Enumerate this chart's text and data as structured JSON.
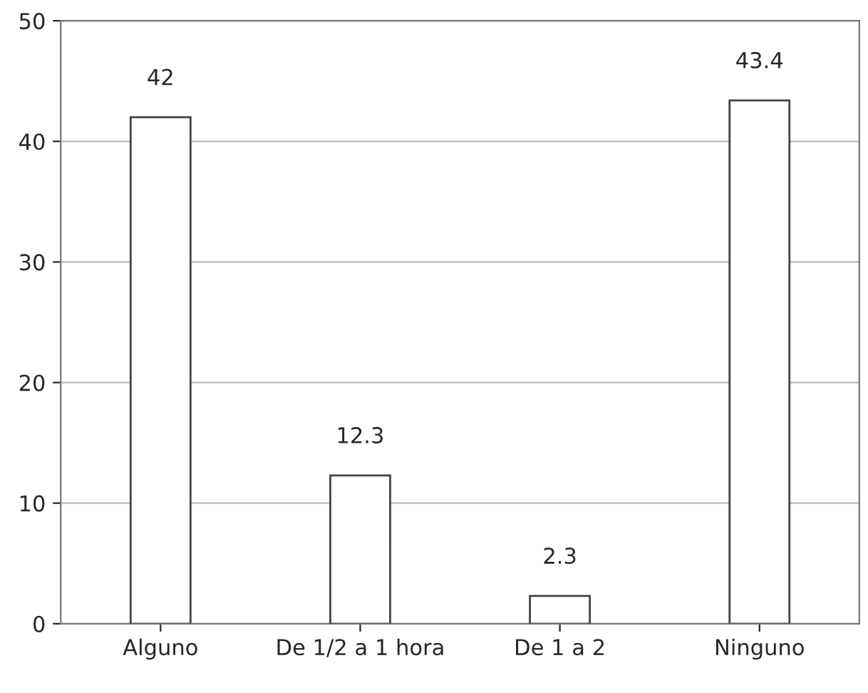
{
  "chart_data": {
    "type": "bar",
    "categories": [
      "Alguno",
      "De 1/2 a 1 hora",
      "De 1 a 2",
      "Ninguno"
    ],
    "values": [
      42,
      12.3,
      2.3,
      43.4
    ],
    "color": "#ffffff",
    "ylim": [
      0,
      50
    ],
    "yticks": [
      0,
      10,
      20,
      30,
      40,
      50
    ],
    "grid": "y",
    "data_labels": true
  }
}
